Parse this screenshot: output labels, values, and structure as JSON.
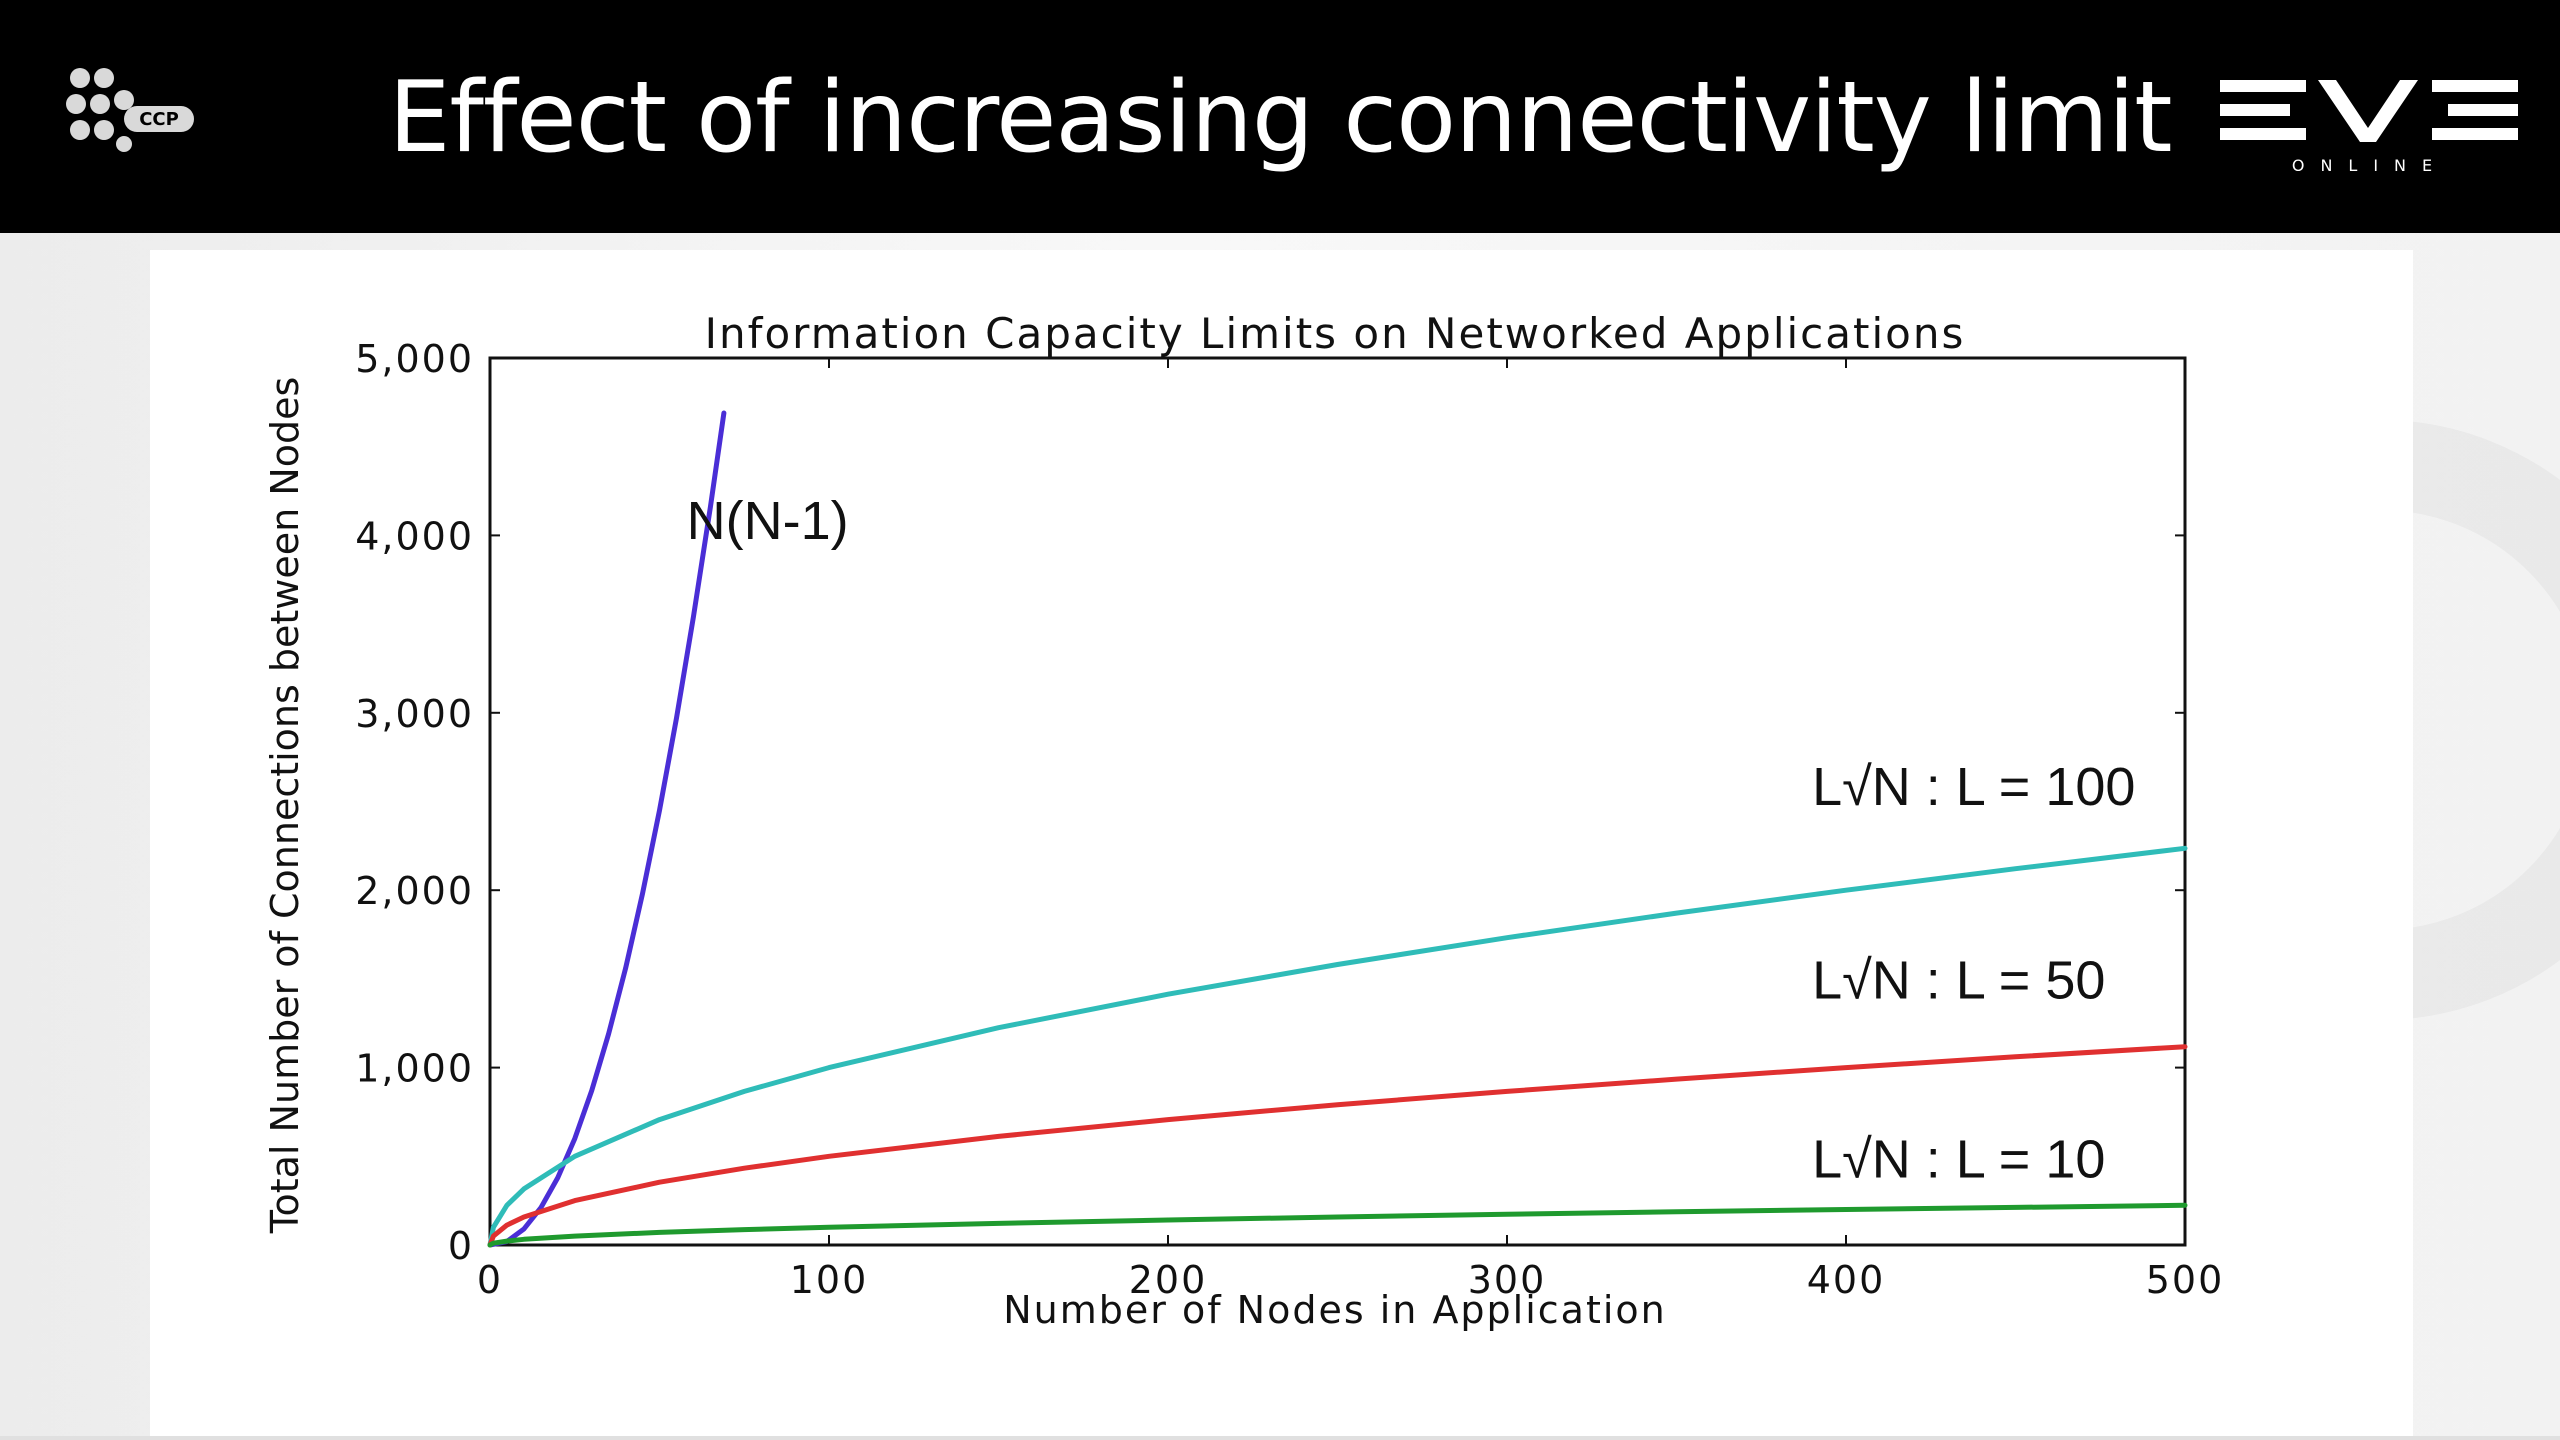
{
  "slide": {
    "title": "Effect of increasing connectivity limit",
    "logo_left": "CCP",
    "logo_right_main": "EVE",
    "logo_right_sub": "ONLINE",
    "header_bg": "#000000",
    "header_text_color": "#ffffff"
  },
  "chart_data": {
    "type": "line",
    "title": "Information Capacity Limits on Networked Applications",
    "xlabel": "Number of Nodes in Application",
    "ylabel": "Total Number of Connections between Nodes",
    "xlim": [
      0,
      500
    ],
    "ylim": [
      0,
      5000
    ],
    "x_ticks": [
      0,
      100,
      200,
      300,
      400,
      500
    ],
    "x_tick_labels": [
      "0",
      "100",
      "200",
      "300",
      "400",
      "500"
    ],
    "y_ticks": [
      0,
      1000,
      2000,
      3000,
      4000,
      5000
    ],
    "y_tick_labels": [
      "0",
      "1,000",
      "2,000",
      "3,000",
      "4,000",
      "5,000"
    ],
    "grid": false,
    "legend": "none",
    "series": [
      {
        "label": "N(N-1)",
        "color": "#4a2ed6",
        "x": [
          0,
          5,
          10,
          15,
          20,
          25,
          30,
          35,
          40,
          45,
          50,
          55,
          60,
          65,
          69
        ],
        "y": [
          0,
          20,
          90,
          210,
          380,
          600,
          870,
          1190,
          1560,
          1980,
          2450,
          2970,
          3540,
          4160,
          4690
        ]
      },
      {
        "label": "L√N : L = 100",
        "color": "#2fbcb8",
        "x": [
          0,
          1,
          5,
          10,
          25,
          50,
          75,
          100,
          150,
          200,
          250,
          300,
          350,
          400,
          450,
          500
        ],
        "y": [
          0,
          100,
          224,
          316,
          500,
          707,
          866,
          1000,
          1225,
          1414,
          1581,
          1732,
          1871,
          2000,
          2121,
          2236
        ]
      },
      {
        "label": "L√N : L = 50",
        "color": "#e03030",
        "x": [
          0,
          1,
          5,
          10,
          25,
          50,
          75,
          100,
          150,
          200,
          250,
          300,
          350,
          400,
          450,
          500
        ],
        "y": [
          0,
          50,
          112,
          158,
          250,
          354,
          433,
          500,
          612,
          707,
          791,
          866,
          935,
          1000,
          1061,
          1118
        ]
      },
      {
        "label": "L√N : L = 10",
        "color": "#1f9a2e",
        "x": [
          0,
          1,
          5,
          10,
          25,
          50,
          75,
          100,
          150,
          200,
          250,
          300,
          350,
          400,
          450,
          500
        ],
        "y": [
          0,
          10,
          22,
          32,
          50,
          71,
          87,
          100,
          122,
          141,
          158,
          173,
          187,
          200,
          212,
          224
        ]
      }
    ],
    "annotations": [
      {
        "text": "N(N-1)",
        "x": 58,
        "y": 3980
      },
      {
        "text": "L√N : L = 100",
        "x": 390,
        "y": 2480
      },
      {
        "text": "L√N : L = 50",
        "x": 390,
        "y": 1390
      },
      {
        "text": "L√N : L = 10",
        "x": 390,
        "y": 380
      }
    ]
  }
}
